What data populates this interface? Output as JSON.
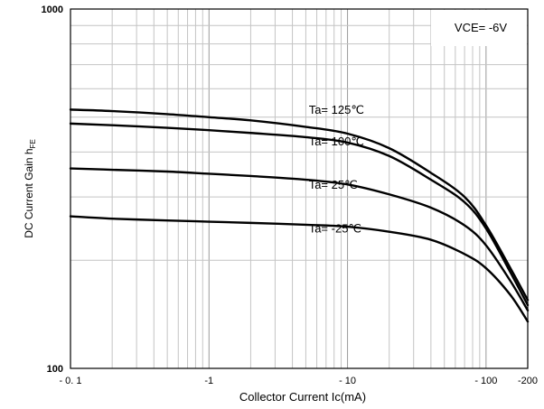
{
  "chart_data": {
    "type": "line",
    "title": "",
    "xlabel": "Collector Current  Ic(mA)",
    "ylabel_main": "DC Current Gain  h",
    "ylabel_sub": "FE",
    "x_scale": "log",
    "y_scale": "log",
    "xlim": [
      0.1,
      200
    ],
    "ylim": [
      100,
      1000
    ],
    "x_ticks": [
      {
        "value": 0.1,
        "label": "- 0. 1"
      },
      {
        "value": 1,
        "label": "-1"
      },
      {
        "value": 10,
        "label": "- 10"
      },
      {
        "value": 100,
        "label": "- 100"
      },
      {
        "value": 200,
        "label": "-200"
      }
    ],
    "y_ticks": [
      {
        "value": 100,
        "label": "100"
      },
      {
        "value": 1000,
        "label": "1000"
      }
    ],
    "grid": true,
    "condition_label": "VCE= -6V",
    "series": [
      {
        "name": "Ta= 125℃",
        "label_at": [
          8,
          520
        ],
        "x": [
          0.1,
          0.2,
          0.5,
          1,
          2,
          5,
          10,
          20,
          40,
          70,
          100,
          150,
          200
        ],
        "y": [
          525,
          520,
          510,
          500,
          490,
          470,
          450,
          410,
          350,
          300,
          250,
          190,
          155
        ]
      },
      {
        "name": "Ta= 100℃",
        "label_at": [
          8,
          425
        ],
        "x": [
          0.1,
          0.2,
          0.5,
          1,
          2,
          5,
          10,
          20,
          40,
          70,
          100,
          150,
          200
        ],
        "y": [
          480,
          475,
          467,
          460,
          452,
          440,
          425,
          390,
          335,
          290,
          245,
          185,
          150
        ]
      },
      {
        "name": "Ta= 25℃",
        "label_at": [
          8,
          322
        ],
        "x": [
          0.1,
          0.2,
          0.5,
          1,
          2,
          5,
          10,
          20,
          40,
          70,
          100,
          150,
          200
        ],
        "y": [
          360,
          357,
          353,
          348,
          343,
          335,
          325,
          305,
          280,
          250,
          220,
          175,
          145
        ]
      },
      {
        "name": "Ta= -25℃",
        "label_at": [
          8,
          243
        ],
        "x": [
          0.1,
          0.2,
          0.5,
          1,
          2,
          5,
          10,
          20,
          40,
          70,
          100,
          150,
          200
        ],
        "y": [
          265,
          261,
          258,
          256,
          254,
          251,
          248,
          240,
          228,
          208,
          190,
          160,
          135
        ]
      }
    ]
  }
}
